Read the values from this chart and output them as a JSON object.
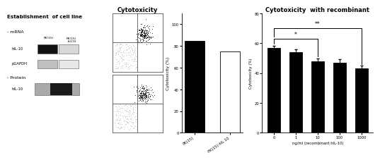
{
  "left_title": "Establishment  of cell line",
  "middle_title": "Cytotoxicity",
  "right_title": "Cytotoxicity  with recombinant",
  "middle_categories": [
    "PK(15)",
    "PK(15)-hIL 10"
  ],
  "middle_values": [
    85,
    75
  ],
  "middle_colors": [
    "black",
    "white"
  ],
  "middle_ylabel": "Cytotoxicity (%)",
  "middle_ylim": [
    0,
    110
  ],
  "middle_yticks": [
    0,
    20,
    40,
    60,
    80,
    100
  ],
  "right_categories": [
    "0",
    "1",
    "10",
    "100",
    "1000"
  ],
  "right_values": [
    57,
    54,
    48,
    47,
    43
  ],
  "right_errors": [
    1.5,
    2.0,
    2.0,
    2.5,
    2.0
  ],
  "right_ylabel": "Cytotoxicity (%)",
  "right_xlabel": "ng/ml (recombinant hIL-10)",
  "right_ylim": [
    0,
    80
  ],
  "right_yticks": [
    0,
    20,
    40,
    60,
    80
  ],
  "mrna_label": "- mRNA",
  "protein_label": "- Protein",
  "hil10_label": "hIL-10",
  "pgapdh_label": "pGAPDH",
  "protein_hil10_label": "hIL-10",
  "col1_label": "PK(15)",
  "col2_label": "PK(15)\n-hIL10",
  "facs_scatter_seed1": 42,
  "facs_scatter_seed2": 99
}
